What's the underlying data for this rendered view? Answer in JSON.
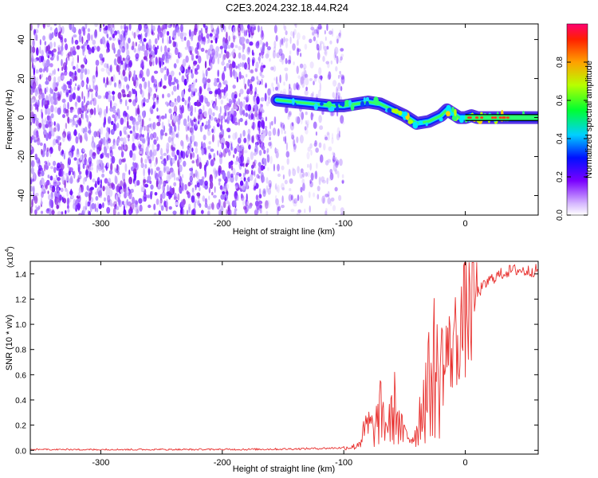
{
  "title": "C2E3.2024.232.18.44.R24",
  "chart_data": [
    {
      "type": "heatmap",
      "xlabel": "Height of straight line (km)",
      "ylabel": "Frequency (Hz)",
      "xlim": [
        -358,
        60
      ],
      "ylim": [
        -50,
        48
      ],
      "x_ticks": [
        -300,
        -200,
        -100,
        0
      ],
      "x_tick_labels": [
        "-300",
        "-200",
        "-100",
        "0"
      ],
      "y_ticks": [
        -40,
        -20,
        0,
        20,
        40
      ],
      "y_tick_labels": [
        "-40",
        "-20",
        "0",
        "20",
        "40"
      ],
      "colorbar": {
        "label": "Normalized spectral amplitude",
        "range": [
          0,
          1
        ],
        "ticks": [
          0.0,
          0.2,
          0.4,
          0.6,
          0.8
        ],
        "tick_labels": [
          "0.0",
          "0.2",
          "0.4",
          "0.6",
          "0.8"
        ]
      },
      "ridge": {
        "x": [
          -155,
          -140,
          -125,
          -110,
          -100,
          -90,
          -80,
          -70,
          -60,
          -50,
          -45,
          -40,
          -30,
          -20,
          -15,
          -10,
          -5,
          0,
          5,
          10,
          20,
          30,
          40,
          60
        ],
        "y": [
          9,
          8,
          7,
          6,
          6,
          7,
          8,
          7,
          4,
          1,
          -1,
          -3,
          -2,
          1,
          4,
          2,
          0,
          0,
          1,
          0,
          0,
          0,
          0,
          0
        ]
      },
      "constant_line": {
        "y_upper": 1.5,
        "y_lower": -1.5,
        "x_start": 0,
        "color": "#000000"
      },
      "noise_regions": [
        {
          "x_start": -358,
          "x_end": -163,
          "density": "high"
        },
        {
          "x_start": -163,
          "x_end": -100,
          "density": "low"
        }
      ]
    },
    {
      "type": "line",
      "xlabel": "Height of straight line (km)",
      "ylabel": "SNR (10 * v/v)",
      "multiplier_label": "(x10",
      "multiplier_exp": "4",
      "multiplier_close": ")",
      "xlim": [
        -358,
        60
      ],
      "ylim": [
        -0.03,
        1.5
      ],
      "x_ticks": [
        -300,
        -200,
        -100,
        0
      ],
      "x_tick_labels": [
        "-300",
        "-200",
        "-100",
        "0"
      ],
      "y_ticks": [
        0.0,
        0.2,
        0.4,
        0.6,
        0.8,
        1.0,
        1.2,
        1.4
      ],
      "y_tick_labels": [
        "0.0",
        "0.2",
        "0.4",
        "0.6",
        "0.8",
        "1.0",
        "1.2",
        "1.4"
      ],
      "series": [
        {
          "color": "#e8312f",
          "x": [
            -358,
            -300,
            -200,
            -150,
            -120,
            -100,
            -90,
            -85,
            -80,
            -75,
            -70,
            -65,
            -60,
            -57,
            -55,
            -50,
            -45,
            -42,
            -40,
            -35,
            -30,
            -25,
            -22,
            -20,
            -17,
            -15,
            -12,
            -10,
            -7,
            -5,
            -2,
            0,
            5,
            10,
            15,
            20,
            25,
            30,
            35,
            40,
            45,
            50,
            60
          ],
          "y": [
            0.005,
            0.005,
            0.006,
            0.01,
            0.015,
            0.02,
            0.03,
            0.1,
            0.2,
            0.15,
            0.3,
            0.2,
            0.25,
            0.4,
            0.2,
            0.12,
            0.1,
            0.12,
            0.15,
            0.4,
            0.5,
            0.7,
            0.5,
            0.8,
            0.6,
            0.85,
            0.7,
            0.95,
            0.8,
            1.05,
            0.95,
            1.1,
            1.2,
            1.25,
            1.3,
            1.35,
            1.38,
            1.4,
            1.42,
            1.43,
            1.43,
            1.42,
            1.43
          ]
        }
      ]
    }
  ]
}
